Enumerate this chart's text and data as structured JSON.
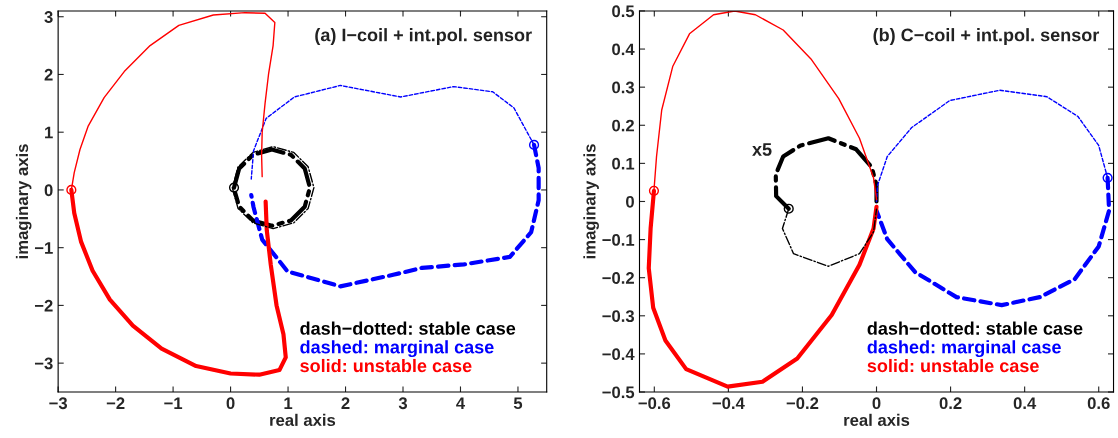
{
  "chart_data": [
    {
      "type": "line",
      "title": "(a) I−coil + int.pol. sensor",
      "xlabel": "real axis",
      "ylabel": "imaginary axis",
      "xlim": [
        -3,
        5.5
      ],
      "ylim": [
        -3.5,
        3.1
      ],
      "xticks": [
        -3,
        -2,
        -1,
        0,
        1,
        2,
        3,
        4,
        5
      ],
      "yticks": [
        -3,
        -2,
        -1,
        0,
        1,
        2,
        3
      ],
      "grid": false,
      "legend": "bottom right",
      "series": [
        {
          "name": "dash−dotted: stable case",
          "color": "#000000",
          "line_style": "dashdot",
          "x": [
            0.06,
            0.15,
            0.39,
            0.72,
            1.05,
            1.29,
            1.38,
            1.29,
            1.05,
            0.72,
            0.39,
            0.15,
            0.08
          ],
          "values": [
            0.04,
            0.37,
            0.61,
            0.7,
            0.61,
            0.37,
            0.04,
            -0.29,
            -0.53,
            -0.62,
            -0.53,
            -0.29,
            -0.05
          ]
        },
        {
          "name": "dashed: marginal case",
          "color": "#0000ff",
          "line_style": "dashed",
          "x": [
            5.28,
            5.36,
            5.36,
            5.23,
            4.86,
            4.06,
            3.33,
            2.83,
            1.91,
            0.99,
            0.55,
            0.4,
            0.36
          ],
          "values": [
            0.78,
            0.38,
            -0.18,
            -0.73,
            -1.16,
            -1.29,
            -1.35,
            -1.47,
            -1.67,
            -1.41,
            -0.86,
            -0.3,
            -0.09
          ]
        },
        {
          "name": "solid: unstable case",
          "color": "#ff0000",
          "line_style": "solid",
          "x": [
            -2.77,
            -2.72,
            -2.6,
            -2.4,
            -2.1,
            -1.7,
            -1.2,
            -0.6,
            0,
            0.5,
            0.85,
            0.96,
            0.92,
            0.8,
            0.7,
            0.63,
            0.61
          ],
          "values": [
            0,
            -0.4,
            -0.9,
            -1.4,
            -1.9,
            -2.35,
            -2.75,
            -3.05,
            -3.18,
            -3.2,
            -3.12,
            -2.9,
            -2.5,
            -2.0,
            -1.3,
            -0.7,
            -0.2
          ]
        },
        {
          "color": "#000000",
          "line_style": "dashdot",
          "x": [
            0.03,
            0.13,
            0.39,
            0.74,
            1.1,
            1.35,
            1.45,
            1.35,
            1.1,
            0.74,
            0.39,
            0.13,
            0.05
          ],
          "values": [
            0.04,
            -0.32,
            -0.57,
            -0.67,
            -0.57,
            -0.32,
            0.04,
            0.4,
            0.65,
            0.75,
            0.65,
            0.4,
            0.1
          ]
        },
        {
          "color": "#0000ff",
          "line_style": "dashed",
          "x": [
            5.28,
            4.93,
            4.56,
            3.88,
            2.96,
            1.91,
            1.11,
            0.62,
            0.4,
            0.36
          ],
          "values": [
            0.78,
            1.42,
            1.7,
            1.79,
            1.61,
            1.81,
            1.61,
            1.24,
            0.68,
            0.19
          ]
        },
        {
          "color": "#ff0000",
          "line_style": "solid",
          "x": [
            -2.77,
            -2.72,
            -2.62,
            -2.48,
            -2.2,
            -1.85,
            -1.4,
            -0.9,
            -0.3,
            0.25,
            0.6,
            0.77,
            0.74,
            0.66,
            0.6,
            0.55,
            0.54,
            0.55
          ],
          "values": [
            0,
            0.3,
            0.7,
            1.1,
            1.6,
            2.05,
            2.5,
            2.85,
            3.03,
            3.07,
            3.06,
            2.9,
            2.5,
            2.0,
            1.5,
            1.0,
            0.6,
            0.23
          ]
        },
        {
          "type": "scatter",
          "marker": "circle",
          "color": "#000000",
          "x": [
            0.06
          ],
          "values": [
            0.04
          ]
        },
        {
          "type": "scatter",
          "marker": "circle",
          "color": "#0000ff",
          "x": [
            5.28
          ],
          "values": [
            0.78
          ]
        },
        {
          "type": "scatter",
          "marker": "circle",
          "color": "#ff0000",
          "x": [
            -2.77
          ],
          "values": [
            0
          ]
        }
      ]
    },
    {
      "type": "line",
      "title": "(b) C−coil + int.pol. sensor",
      "xlabel": "real axis",
      "ylabel": "imaginary axis",
      "xlim": [
        -0.64,
        0.64
      ],
      "ylim": [
        -0.5,
        0.5
      ],
      "xticks": [
        -0.6,
        -0.4,
        -0.2,
        0,
        0.2,
        0.4,
        0.6
      ],
      "yticks": [
        -0.5,
        -0.4,
        -0.3,
        -0.2,
        -0.1,
        0,
        0.1,
        0.2,
        0.3,
        0.4,
        0.5
      ],
      "grid": false,
      "legend": "bottom right",
      "annotations": [
        "x5"
      ],
      "series": [
        {
          "name": "dash−dotted: stable case",
          "color": "#000000",
          "line_style": "dashdot",
          "x": [
            -0.237,
            -0.271,
            -0.272,
            -0.252,
            -0.205,
            -0.13,
            -0.055,
            -0.013,
            0,
            0
          ],
          "values": [
            -0.019,
            0.014,
            0.071,
            0.118,
            0.147,
            0.166,
            0.137,
            0.09,
            0.043,
            0
          ]
        },
        {
          "name": "dashed: marginal case",
          "color": "#0000ff",
          "line_style": "dashed",
          "x": [
            0.624,
            0.628,
            0.6,
            0.535,
            0.441,
            0.338,
            0.216,
            0.104,
            0.029,
            0
          ],
          "values": [
            0.062,
            -0.024,
            -0.118,
            -0.204,
            -0.251,
            -0.272,
            -0.251,
            -0.185,
            -0.099,
            -0.024
          ]
        },
        {
          "name": "solid: unstable case",
          "color": "#ff0000",
          "line_style": "solid",
          "x": [
            -0.601,
            -0.61,
            -0.615,
            -0.603,
            -0.57,
            -0.514,
            -0.402,
            -0.308,
            -0.214,
            -0.121,
            -0.046,
            -0.008,
            0
          ],
          "values": [
            0.028,
            -0.071,
            -0.175,
            -0.279,
            -0.365,
            -0.44,
            -0.486,
            -0.473,
            -0.412,
            -0.298,
            -0.166,
            -0.071,
            -0.014
          ]
        },
        {
          "color": "#000000",
          "line_style": "dashdot",
          "x": [
            -0.237,
            -0.254,
            -0.224,
            -0.13,
            -0.046,
            -0.008,
            0
          ],
          "values": [
            -0.019,
            -0.071,
            -0.137,
            -0.17,
            -0.137,
            -0.08,
            -0.02
          ]
        },
        {
          "color": "#0000ff",
          "line_style": "dashed",
          "x": [
            0.624,
            0.6,
            0.544,
            0.46,
            0.333,
            0.198,
            0.095,
            0.029,
            0.003,
            0
          ],
          "values": [
            0.062,
            0.147,
            0.223,
            0.275,
            0.292,
            0.265,
            0.194,
            0.118,
            0.043,
            0
          ]
        },
        {
          "color": "#ff0000",
          "line_style": "solid",
          "x": [
            -0.601,
            -0.594,
            -0.58,
            -0.55,
            -0.505,
            -0.44,
            -0.383,
            -0.327,
            -0.252,
            -0.177,
            -0.102,
            -0.046,
            -0.008,
            0
          ],
          "values": [
            0.028,
            0.118,
            0.24,
            0.355,
            0.44,
            0.49,
            0.5,
            0.49,
            0.45,
            0.374,
            0.27,
            0.166,
            0.062,
            0.005
          ]
        },
        {
          "type": "scatter",
          "marker": "circle",
          "color": "#000000",
          "x": [
            -0.237
          ],
          "values": [
            -0.019
          ]
        },
        {
          "type": "scatter",
          "marker": "circle",
          "color": "#0000ff",
          "x": [
            0.624
          ],
          "values": [
            0.062
          ]
        },
        {
          "type": "scatter",
          "marker": "circle",
          "color": "#ff0000",
          "x": [
            -0.601
          ],
          "values": [
            0.028
          ]
        }
      ]
    }
  ]
}
